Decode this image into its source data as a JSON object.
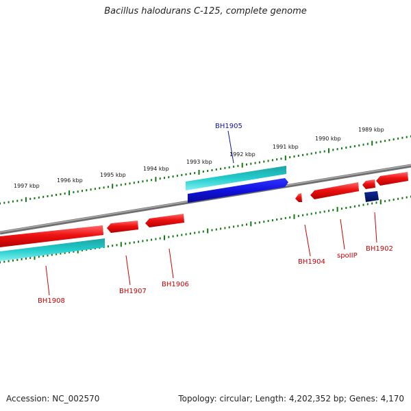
{
  "title": "Bacillus halodurans C-125, complete genome",
  "footer": {
    "accession": "Accession: NC_002570",
    "topology": "Topology: circular; Length: 4,202,352 bp; Genes: 4,170"
  },
  "scale": {
    "upper_labels": [
      "1997 kbp",
      "1996 kbp",
      "1995 kbp",
      "1994 kbp",
      "1993 kbp",
      "1992 kbp",
      "1991 kbp",
      "1990 kbp",
      "1989 kbp"
    ]
  },
  "colors": {
    "forward_gene": "#ee1111",
    "reverse_gene": "#1111dd",
    "cds_cyan": "#22cccc",
    "dark_gene": "#001177",
    "backbone": "#888888",
    "ticks": "#117711",
    "label_red": "#cc0000",
    "label_blue": "#1111aa"
  },
  "genes": [
    {
      "id": "BH1905",
      "color": "blue"
    },
    {
      "id": "BH1904",
      "color": "red"
    },
    {
      "id": "spoIIP",
      "color": "red"
    },
    {
      "id": "BH1902",
      "color": "red"
    },
    {
      "id": "BH1908",
      "color": "red"
    },
    {
      "id": "BH1907",
      "color": "red"
    },
    {
      "id": "BH1906",
      "color": "red"
    }
  ]
}
